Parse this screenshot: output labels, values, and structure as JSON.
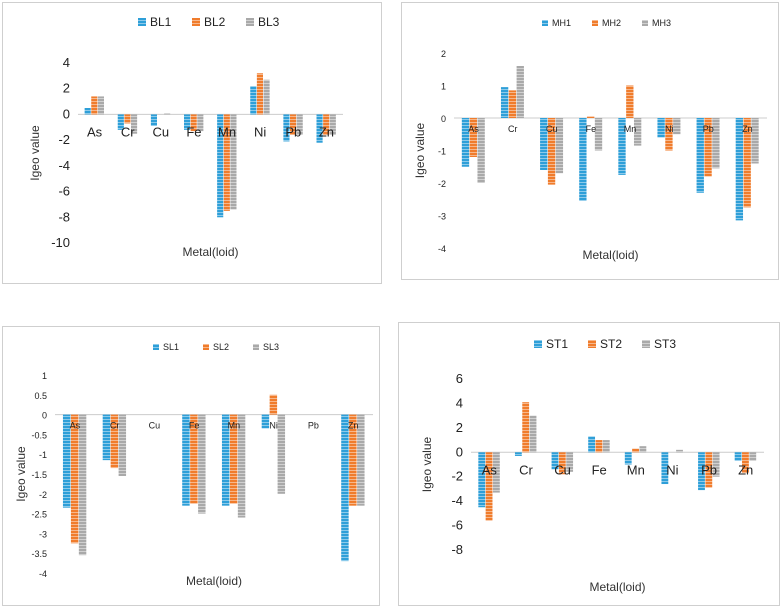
{
  "colors": {
    "series1": "#2e9fd8",
    "series2": "#f07c2c",
    "series3": "#a9a9a9"
  },
  "chart_data": [
    {
      "type": "bar",
      "title": "",
      "xlabel": "Metal(loid)",
      "ylabel": "Igeo value",
      "categories": [
        "As",
        "Cr",
        "Cu",
        "Fe",
        "Mn",
        "Ni",
        "Pb",
        "Zn"
      ],
      "ylim": [
        -10,
        4
      ],
      "yticks": [
        4,
        2,
        0,
        -2,
        -4,
        -6,
        -8,
        -10
      ],
      "legend": "top",
      "series": [
        {
          "name": "BL1",
          "values": [
            0.5,
            -1.2,
            -0.9,
            -1.2,
            -8.0,
            2.2,
            -2.1,
            -2.2
          ]
        },
        {
          "name": "BL2",
          "values": [
            1.4,
            -0.7,
            0.0,
            -1.3,
            -7.5,
            3.2,
            -1.6,
            -1.6
          ]
        },
        {
          "name": "BL3",
          "values": [
            1.4,
            -1.5,
            0.1,
            -1.3,
            -7.4,
            2.7,
            -1.6,
            -1.6
          ]
        }
      ]
    },
    {
      "type": "bar",
      "title": "",
      "xlabel": "Metal(loid)",
      "ylabel": "Igeo value",
      "categories": [
        "As",
        "Cr",
        "Cu",
        "Fe",
        "Mn",
        "Ni",
        "Pb",
        "Zn"
      ],
      "ylim": [
        -4,
        2
      ],
      "yticks": [
        2,
        1,
        0,
        -1,
        -2,
        -3,
        -4
      ],
      "legend": "top",
      "series": [
        {
          "name": "MH1",
          "values": [
            -1.5,
            0.95,
            -1.6,
            -2.55,
            -1.75,
            -0.6,
            -2.3,
            -3.15
          ]
        },
        {
          "name": "MH2",
          "values": [
            -1.2,
            0.85,
            -2.05,
            0.05,
            1.0,
            -1.0,
            -1.8,
            -2.75
          ]
        },
        {
          "name": "MH3",
          "values": [
            -2.0,
            1.6,
            -1.7,
            -1.0,
            -0.85,
            -0.5,
            -1.55,
            -1.4
          ]
        }
      ]
    },
    {
      "type": "bar",
      "title": "",
      "xlabel": "Metal(loid)",
      "ylabel": "Igeo value",
      "categories": [
        "As",
        "Cr",
        "Cu",
        "Fe",
        "Mn",
        "Ni",
        "Pb",
        "Zn"
      ],
      "ylim": [
        -4,
        1
      ],
      "yticks": [
        "1",
        "0.5",
        "0",
        "-0.5",
        "-1",
        "-1.5",
        "-2",
        "-2.5",
        "-3",
        "-3.5",
        "-4"
      ],
      "legend": "top",
      "series": [
        {
          "name": "SL1",
          "values": [
            -2.35,
            -1.15,
            0,
            -2.3,
            -2.3,
            -0.35,
            0,
            -3.7
          ]
        },
        {
          "name": "SL2",
          "values": [
            -3.25,
            -1.35,
            0,
            -2.25,
            -2.25,
            0.5,
            0,
            -2.3
          ]
        },
        {
          "name": "SL3",
          "values": [
            -3.55,
            -1.55,
            0,
            -2.5,
            -2.6,
            -2.0,
            0,
            -2.3
          ]
        }
      ]
    },
    {
      "type": "bar",
      "title": "",
      "xlabel": "Metal(loid)",
      "ylabel": "Igeo value",
      "categories": [
        "As",
        "Cr",
        "Cu",
        "Fe",
        "Mn",
        "Ni",
        "Pb",
        "Zn"
      ],
      "ylim": [
        -8,
        6
      ],
      "yticks": [
        6,
        4,
        2,
        0,
        -2,
        -4,
        -6,
        -8
      ],
      "legend": "top",
      "series": [
        {
          "name": "ST1",
          "values": [
            -4.5,
            -0.3,
            -1.4,
            1.3,
            -1.0,
            -2.6,
            -3.1,
            -0.7
          ]
        },
        {
          "name": "ST2",
          "values": [
            -5.6,
            4.1,
            -1.8,
            1.0,
            0.3,
            0.0,
            -2.9,
            -1.7
          ]
        },
        {
          "name": "ST3",
          "values": [
            -3.3,
            3.0,
            -1.6,
            1.0,
            0.5,
            0.2,
            -2.0,
            -0.7
          ]
        }
      ]
    }
  ]
}
